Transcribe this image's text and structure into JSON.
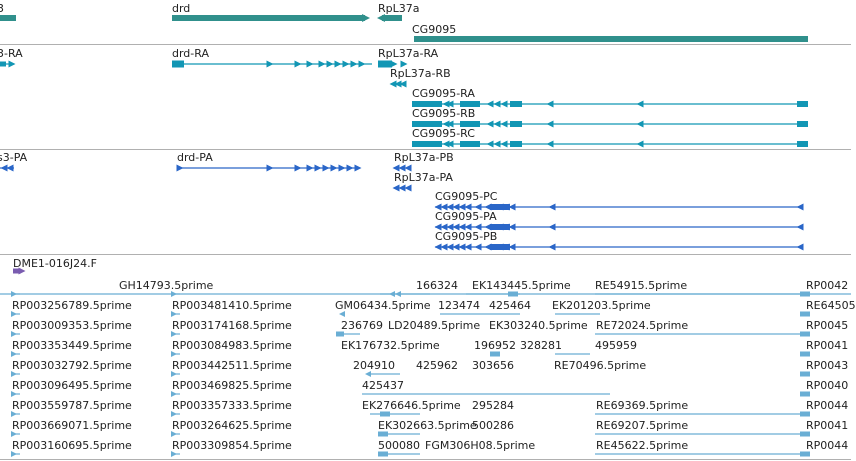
{
  "colors": {
    "gene": "#30908c",
    "transcript": "#1296b4",
    "protein": "#2a66c8",
    "clone": "#7a5cb0",
    "est": "#6aaed4",
    "separator": "#b0b0b0"
  },
  "genes": {
    "labels": [
      "3",
      "drd",
      "RpL37a",
      "CG9095"
    ]
  },
  "transcripts": {
    "labels": [
      "3-RA",
      "drd-RA",
      "RpL37a-RA",
      "RpL37a-RB",
      "CG9095-RA",
      "CG9095-RB",
      "CG9095-RC"
    ]
  },
  "proteins": {
    "labels": [
      "s3-PA",
      "drd-PA",
      "RpL37a-PB",
      "RpL37a-PA",
      "CG9095-PC",
      "CG9095-PA",
      "CG9095-PB"
    ]
  },
  "clones": {
    "labels": [
      "DME1-016J24.F"
    ]
  },
  "ests": {
    "rows": [
      [
        "GH14793.5prime",
        "166324",
        "EK143445.5prime",
        "RE54915.5prime",
        "RP0042"
      ],
      [
        "RP003256789.5prime",
        "RP003481410.5prime",
        "GM06434.5prime",
        "123474",
        "425464",
        "EK201203.5prime",
        "RE64505"
      ],
      [
        "RP003009353.5prime",
        "RP003174168.5prime",
        "236769",
        "LD20489.5prime",
        "EK303240.5prime",
        "RE72024.5prime",
        "RP0045"
      ],
      [
        "RP003353449.5prime",
        "RP003084983.5prime",
        "EK176732.5prime",
        "196952",
        "328281",
        "495959",
        "RP0041"
      ],
      [
        "RP003032792.5prime",
        "RP003442511.5prime",
        "204910",
        "425962",
        "303656",
        "RE70496.5prime",
        "RP0043"
      ],
      [
        "RP003096495.5prime",
        "RP003469825.5prime",
        "425437",
        "RP0040"
      ],
      [
        "RP003559787.5prime",
        "RP003357333.5prime",
        "EK276646.5prime",
        "295284",
        "RE69369.5prime",
        "RP0044"
      ],
      [
        "RP003669071.5prime",
        "RP003264625.5prime",
        "EK302663.5prime",
        "500286",
        "RE69207.5prime",
        "RP0041"
      ],
      [
        "RP003160695.5prime",
        "RP003309854.5prime",
        "500080",
        "FGM306H08.5prime",
        "RE45622.5prime",
        "RP0044"
      ]
    ]
  }
}
